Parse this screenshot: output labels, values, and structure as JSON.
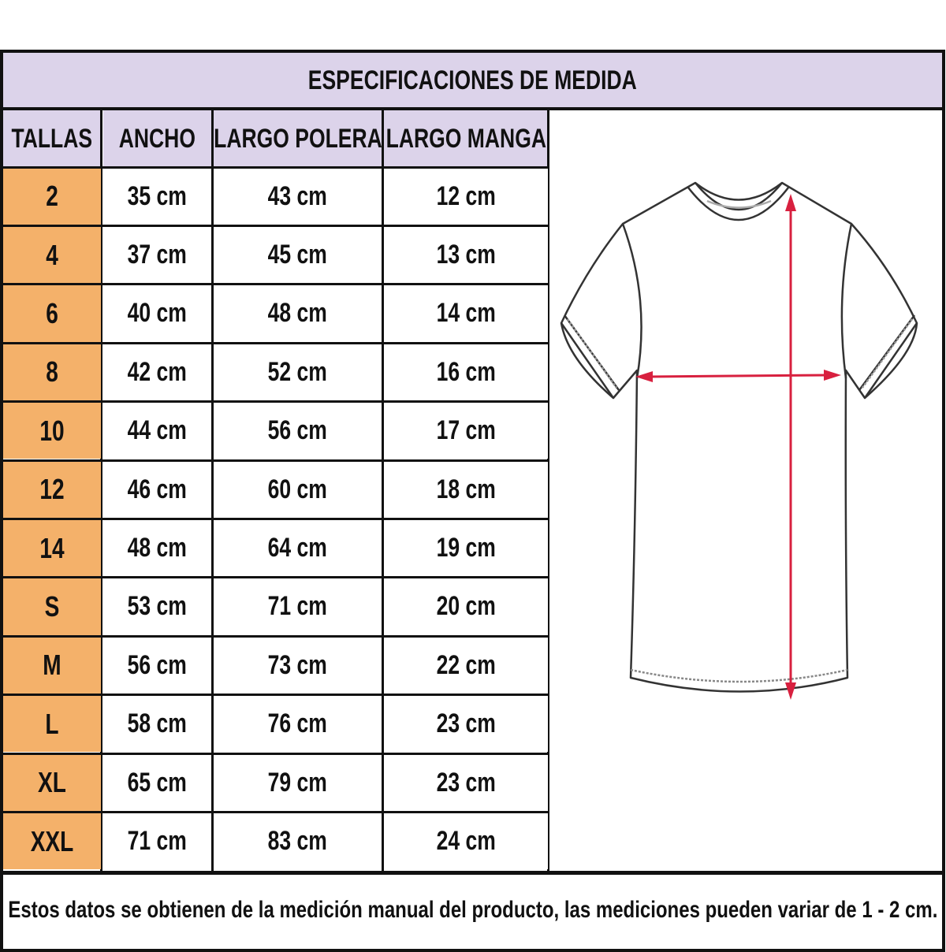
{
  "title": "ESPECIFICACIONES DE MEDIDA",
  "headers": [
    "TALLAS",
    "ANCHO",
    "LARGO POLERA",
    "LARGO MANGA"
  ],
  "rows": [
    [
      "2",
      "35 cm",
      "43 cm",
      "12 cm"
    ],
    [
      "4",
      "37 cm",
      "45 cm",
      "13 cm"
    ],
    [
      "6",
      "40 cm",
      "48 cm",
      "14 cm"
    ],
    [
      "8",
      "42 cm",
      "52 cm",
      "16 cm"
    ],
    [
      "10",
      "44 cm",
      "56 cm",
      "17 cm"
    ],
    [
      "12",
      "46 cm",
      "60 cm",
      "18 cm"
    ],
    [
      "14",
      "48 cm",
      "64 cm",
      "19 cm"
    ],
    [
      "S",
      "53 cm",
      "71 cm",
      "20 cm"
    ],
    [
      "M",
      "56 cm",
      "73 cm",
      "22 cm"
    ],
    [
      "L",
      "58 cm",
      "76 cm",
      "23 cm"
    ],
    [
      "XL",
      "65 cm",
      "79 cm",
      "23 cm"
    ],
    [
      "XXL",
      "71 cm",
      "83 cm",
      "24 cm"
    ]
  ],
  "footer": "Estos datos se obtienen de la medición manual del producto, las mediciones pueden variar de 1 - 2 cm.",
  "colors": {
    "header_bg": "#dcd3ea",
    "size_bg": "#f4b16a",
    "arrow": "#d8203f"
  },
  "illustration": "t-shirt-measurement-diagram"
}
